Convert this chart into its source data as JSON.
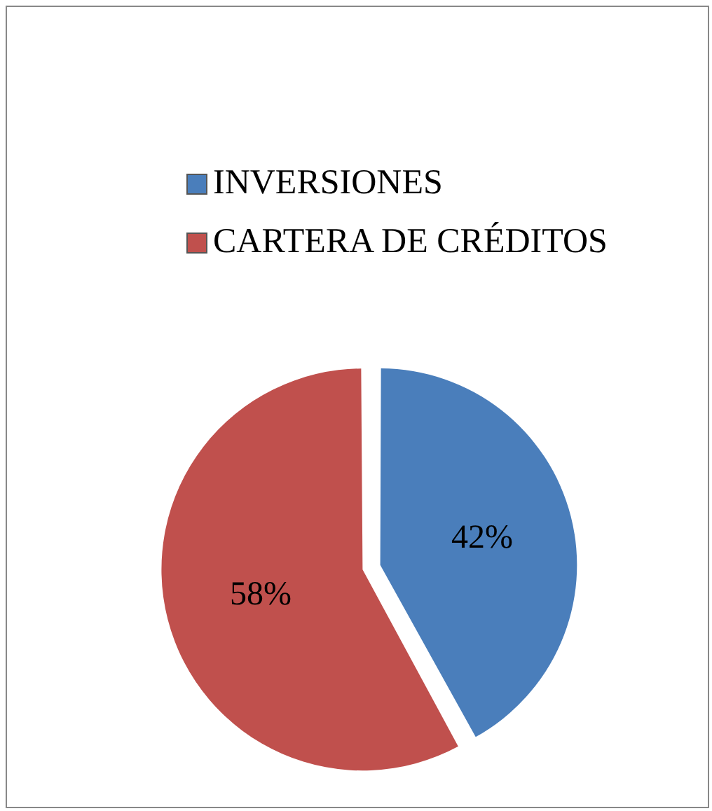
{
  "chart_data": {
    "type": "pie",
    "categories": [
      "INVERSIONES",
      "CARTERA DE CRÉDITOS"
    ],
    "values": [
      42,
      58
    ],
    "colors": [
      "#4a7ebb",
      "#c0504d"
    ],
    "value_labels": [
      "42%",
      "58%"
    ],
    "legend": "top"
  }
}
